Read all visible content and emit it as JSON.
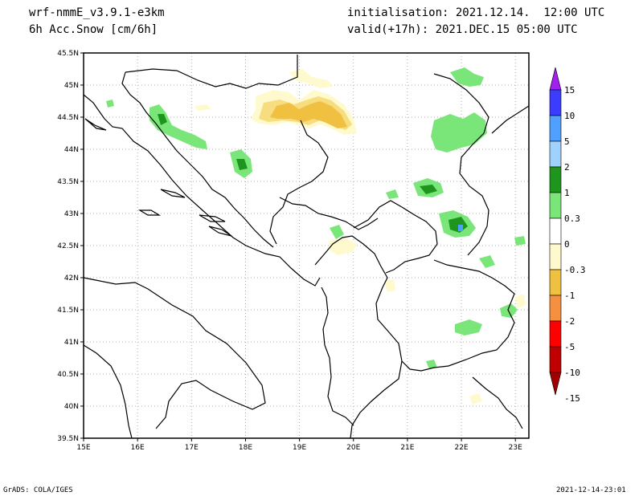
{
  "header": {
    "model": "wrf-nmmE_v3.9.1-e3km",
    "field": "6h Acc.Snow [cm/6h]",
    "init": "initialisation: 2021.12.14.  12:00 UTC",
    "valid": "valid(+17h): 2021.DEC.15 05:00 UTC"
  },
  "map": {
    "lon_range": [
      15,
      23.25
    ],
    "lat_range": [
      39.5,
      45.5
    ],
    "lat_labels": [
      "45.5N",
      "45N",
      "44.5N",
      "44N",
      "43.5N",
      "43N",
      "42.5N",
      "42N",
      "41.5N",
      "41N",
      "40.5N",
      "40N",
      "39.5N"
    ],
    "lon_labels": [
      "15E",
      "16E",
      "17E",
      "18E",
      "19E",
      "20E",
      "21E",
      "22E",
      "23E"
    ]
  },
  "colorbar": {
    "labels": [
      "15",
      "10",
      "5",
      "2",
      "1",
      "0.3",
      "0",
      "-0.3",
      "-1",
      "-2",
      "-5",
      "-10",
      "-15"
    ],
    "colors": [
      "#a020f0",
      "#3c3cff",
      "#50a0ff",
      "#a0d2ff",
      "#1e961e",
      "#7ae67a",
      "#ffffff",
      "#fffacd",
      "#f0c040",
      "#f59040",
      "#ff0000",
      "#c00000",
      "#a00000"
    ]
  },
  "footer": {
    "left": "GrADS: COLA/IGES",
    "right": "2021-12-14-23:01"
  }
}
